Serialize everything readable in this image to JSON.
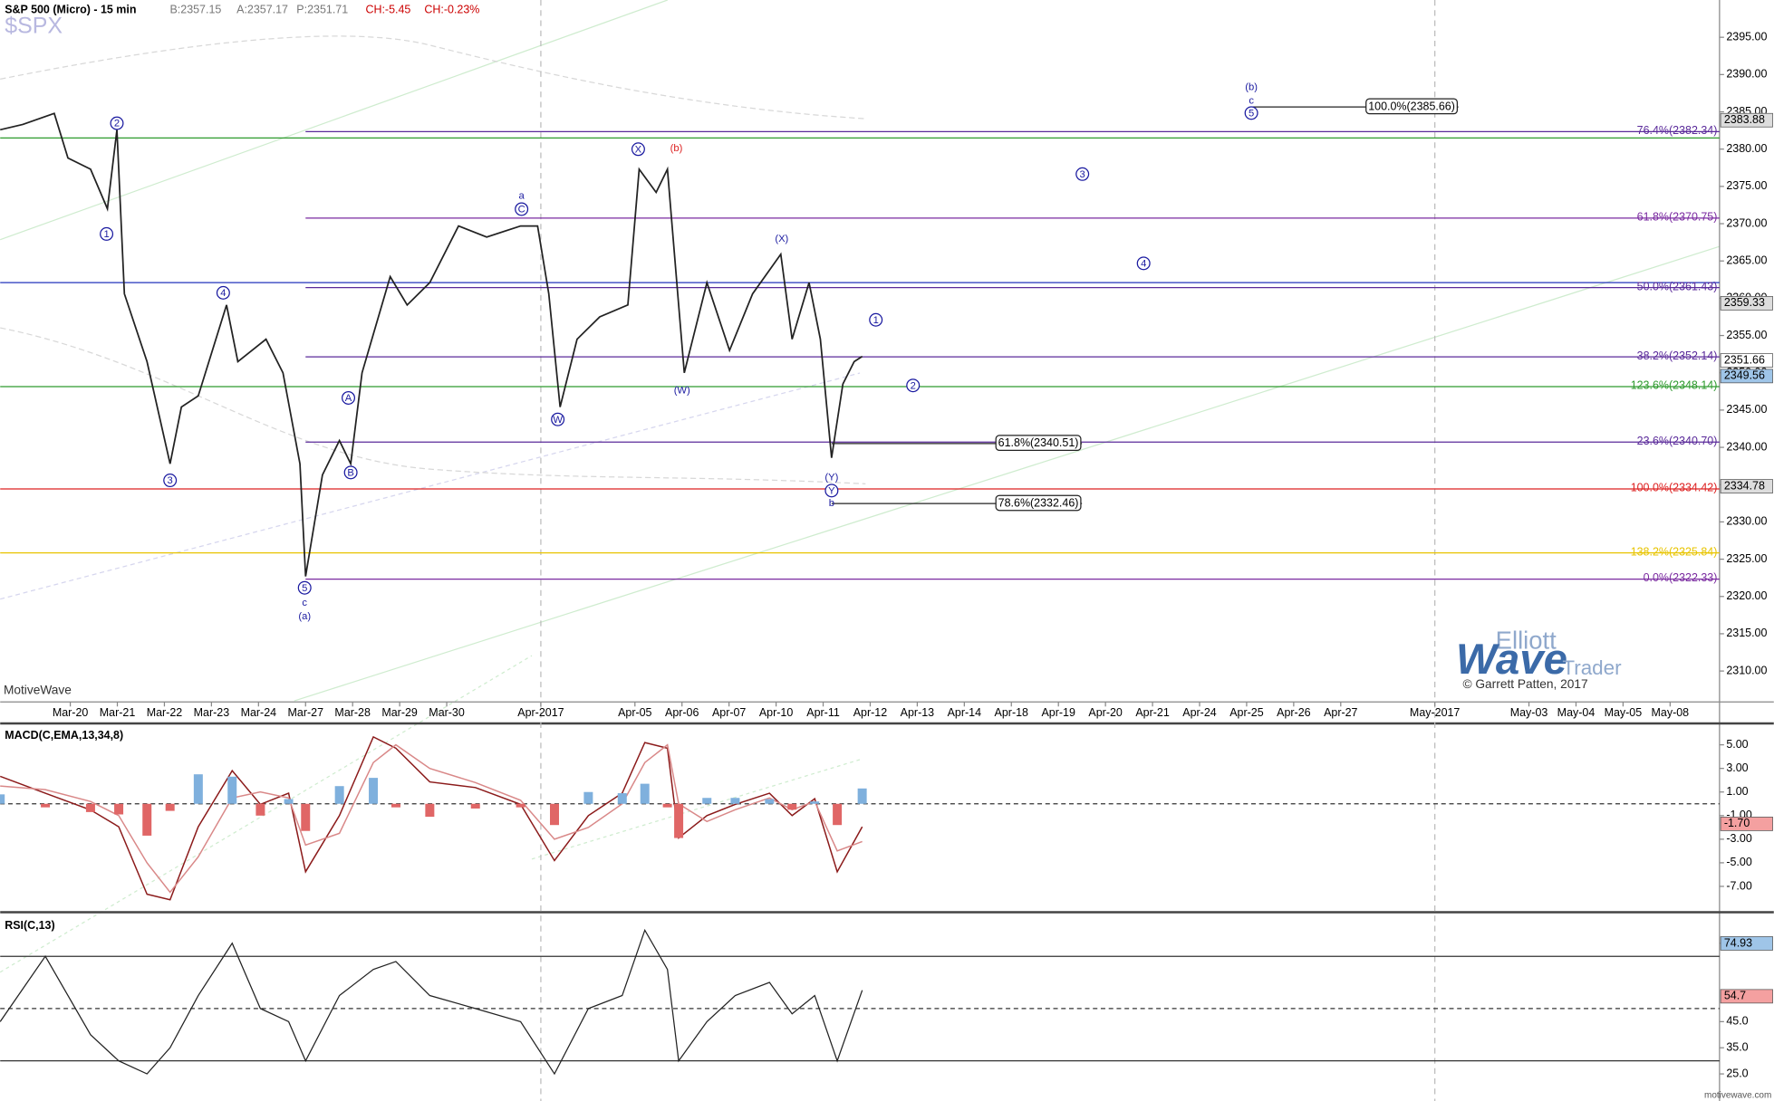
{
  "header": {
    "title": "S&P 500 (Micro) - 15 min",
    "symbol": "$SPX",
    "bid": "B:2357.15",
    "ask": "A:2357.17",
    "price": "P:2351.71",
    "change": "CH:-5.45",
    "change_pct": "CH:-0.23%"
  },
  "branding": {
    "platform": "MotiveWave",
    "word1": "Elliott",
    "word2": "Wave",
    "word3": "Trader",
    "credit": "© Garrett Patten, 2017",
    "site": "motivewave.com"
  },
  "chart_data": [
    {
      "type": "line",
      "title": "S&P 500 (Micro) - 15 min",
      "xlim": [
        -1.49,
        35.05
      ],
      "ylim": [
        2306,
        2400
      ],
      "xticks": [
        {
          "value": 0,
          "label": "Mar-20"
        },
        {
          "value": 1,
          "label": "Mar-21"
        },
        {
          "value": 2,
          "label": "Mar-22"
        },
        {
          "value": 3,
          "label": "Mar-23"
        },
        {
          "value": 4,
          "label": "Mar-24"
        },
        {
          "value": 5,
          "label": "Mar-27"
        },
        {
          "value": 6,
          "label": "Mar-28"
        },
        {
          "value": 7,
          "label": "Mar-29"
        },
        {
          "value": 8,
          "label": "Mar-30"
        },
        {
          "value": 10,
          "label": "Apr-2017"
        },
        {
          "value": 12,
          "label": "Apr-05"
        },
        {
          "value": 13,
          "label": "Apr-06"
        },
        {
          "value": 14,
          "label": "Apr-07"
        },
        {
          "value": 15,
          "label": "Apr-10"
        },
        {
          "value": 16,
          "label": "Apr-11"
        },
        {
          "value": 17,
          "label": "Apr-12"
        },
        {
          "value": 18,
          "label": "Apr-13"
        },
        {
          "value": 19,
          "label": "Apr-14"
        },
        {
          "value": 20,
          "label": "Apr-18"
        },
        {
          "value": 21,
          "label": "Apr-19"
        },
        {
          "value": 22,
          "label": "Apr-20"
        },
        {
          "value": 23,
          "label": "Apr-21"
        },
        {
          "value": 24,
          "label": "Apr-24"
        },
        {
          "value": 25,
          "label": "Apr-25"
        },
        {
          "value": 26,
          "label": "Apr-26"
        },
        {
          "value": 27,
          "label": "Apr-27"
        },
        {
          "value": 29,
          "label": "May-2017"
        },
        {
          "value": 31,
          "label": "May-03"
        },
        {
          "value": 32,
          "label": "May-04"
        },
        {
          "value": 33,
          "label": "May-05"
        },
        {
          "value": 34,
          "label": "May-08"
        }
      ],
      "month_lines": [
        10,
        29
      ],
      "yticks": [
        {
          "value": 2310,
          "label": "2310.00"
        },
        {
          "value": 2315,
          "label": "2315.00"
        },
        {
          "value": 2320,
          "label": "2320.00"
        },
        {
          "value": 2325,
          "label": "2325.00"
        },
        {
          "value": 2330,
          "label": "2330.00"
        },
        {
          "value": 2335,
          "label": "2335.00"
        },
        {
          "value": 2340,
          "label": "2340.00"
        },
        {
          "value": 2345,
          "label": "2345.00"
        },
        {
          "value": 2350,
          "label": "2350.00"
        },
        {
          "value": 2355,
          "label": "2355.00"
        },
        {
          "value": 2360,
          "label": "2360.00"
        },
        {
          "value": 2365,
          "label": "2365.00"
        },
        {
          "value": 2370,
          "label": "2370.00"
        },
        {
          "value": 2375,
          "label": "2375.00"
        },
        {
          "value": 2380,
          "label": "2380.00"
        },
        {
          "value": 2385,
          "label": "2385.00"
        },
        {
          "value": 2390,
          "label": "2390.00"
        },
        {
          "value": 2395,
          "label": "2395.00"
        }
      ],
      "series": [
        {
          "color": "#222222",
          "x": [
            -1.49,
            -1.01,
            -0.34,
            -0.05,
            0.43,
            0.79,
            0.99,
            1.15,
            1.63,
            2.12,
            2.36,
            2.72,
            3.32,
            3.56,
            4.16,
            4.52,
            4.88,
            5.0,
            5.36,
            5.72,
            5.96,
            6.2,
            6.8,
            7.16,
            7.64,
            8.25,
            8.85,
            9.57,
            9.93,
            10.17,
            10.41,
            10.77,
            11.25,
            11.85,
            12.09,
            12.45,
            12.69,
            12.93,
            13.05,
            13.53,
            14.01,
            14.5,
            15.1,
            15.34,
            15.7,
            15.94,
            16.18,
            16.42,
            16.66,
            16.83
          ],
          "values": [
            2382.6,
            2383.3,
            2384.8,
            2378.8,
            2377.3,
            2372,
            2382.6,
            2360.6,
            2351.5,
            2337.8,
            2345.4,
            2346.9,
            2359.1,
            2351.5,
            2354.5,
            2350,
            2337.8,
            2322.7,
            2336.3,
            2340.9,
            2337.8,
            2350,
            2362.9,
            2359.1,
            2362.1,
            2369.7,
            2368.2,
            2369.7,
            2369.7,
            2360.6,
            2345.4,
            2354.5,
            2357.5,
            2359.1,
            2377.3,
            2374.2,
            2377.3,
            2359.1,
            2350,
            2362.1,
            2353,
            2360.6,
            2365.9,
            2354.5,
            2362.1,
            2354.5,
            2338.6,
            2348.5,
            2351.5,
            2352.2
          ]
        }
      ],
      "levels": [
        {
          "value": 2381.5,
          "color": "#2e9a2e",
          "from": null
        },
        {
          "value": 2362.1,
          "color": "#2233bb",
          "from": null
        },
        {
          "value": 2382.34,
          "label": "76.4%(2382.34)",
          "color": "#5a2a9a",
          "from": 5.0
        },
        {
          "value": 2370.75,
          "label": "61.8%(2370.75)",
          "color": "#7a2aa0",
          "from": 5.0
        },
        {
          "value": 2361.43,
          "label": "50.0%(2361.43)",
          "color": "#5a2a9a",
          "from": 5.0
        },
        {
          "value": 2352.14,
          "label": "38.2%(2352.14)",
          "color": "#5a2a9a",
          "from": 5.0
        },
        {
          "value": 2348.14,
          "label": "123.6%(2348.14)",
          "color": "#2e9a2e",
          "from": null
        },
        {
          "value": 2340.7,
          "label": "23.6%(2340.70)",
          "color": "#5a2a9a",
          "from": 5.0
        },
        {
          "value": 2334.42,
          "label": "100.0%(2334.42)",
          "color": "#dd2222",
          "from": null
        },
        {
          "value": 2325.84,
          "label": "138.2%(2325.84)",
          "color": "#e8c400",
          "from": null
        },
        {
          "value": 2322.33,
          "label": "0.0%(2322.33)",
          "color": "#7a2aa0",
          "from": 5.0
        }
      ],
      "boxed_levels": [
        {
          "value": 2385.66,
          "label": "100.0%(2385.66)",
          "from": 25.1,
          "to": 29.5
        },
        {
          "value": 2340.51,
          "label": "61.8%(2340.51)",
          "from": 16.18,
          "to": 21.5
        },
        {
          "value": 2332.46,
          "label": "78.6%(2332.46)",
          "from": 16.18,
          "to": 21.5
        }
      ],
      "price_tags": [
        {
          "value": 2383.88,
          "color": "#dddddd"
        },
        {
          "value": 2359.33,
          "color": "#dddddd"
        },
        {
          "value": 2351.66,
          "color": "#ffffff"
        },
        {
          "value": 2349.56,
          "color": "#9fc5e8"
        },
        {
          "value": 2334.78,
          "color": "#dddddd"
        }
      ],
      "annotations": [
        {
          "x": 0.99,
          "y": 2383.47,
          "text": "2",
          "circled": true,
          "color": "#1a1aa0"
        },
        {
          "x": 0.77,
          "y": 2368.62,
          "text": "1",
          "circled": true,
          "color": "#1a1aa0"
        },
        {
          "x": 3.25,
          "y": 2360.73,
          "text": "4",
          "circled": true,
          "color": "#1a1aa0"
        },
        {
          "x": 2.12,
          "y": 2335.57,
          "text": "3",
          "circled": true,
          "color": "#1a1aa0"
        },
        {
          "x": 4.98,
          "y": 2321.16,
          "text": "5",
          "circled": true,
          "color": "#1a1aa0"
        },
        {
          "x": 4.98,
          "y": 2319.19,
          "text": "c",
          "circled": false,
          "color": "#1a1aa0"
        },
        {
          "x": 4.98,
          "y": 2317.37,
          "text": "(a)",
          "circled": false,
          "color": "#1a1aa0"
        },
        {
          "x": 5.91,
          "y": 2346.63,
          "text": "A",
          "circled": true,
          "color": "#1a1aa0"
        },
        {
          "x": 5.96,
          "y": 2336.63,
          "text": "B",
          "circled": true,
          "color": "#1a1aa0"
        },
        {
          "x": 9.59,
          "y": 2373.77,
          "text": "a",
          "circled": false,
          "color": "#1a1aa0"
        },
        {
          "x": 9.59,
          "y": 2371.95,
          "text": "C",
          "circled": true,
          "color": "#1a1aa0"
        },
        {
          "x": 10.36,
          "y": 2343.75,
          "text": "W",
          "circled": true,
          "color": "#1a1aa0"
        },
        {
          "x": 12.07,
          "y": 2379.99,
          "text": "X",
          "circled": true,
          "color": "#1a1aa0"
        },
        {
          "x": 12.88,
          "y": 2380.14,
          "text": "(b)",
          "circled": false,
          "color": "#dd2222"
        },
        {
          "x": 13.0,
          "y": 2347.7,
          "text": "(W)",
          "circled": false,
          "color": "#1a1aa0"
        },
        {
          "x": 15.12,
          "y": 2368.01,
          "text": "(X)",
          "circled": false,
          "color": "#1a1aa0"
        },
        {
          "x": 16.18,
          "y": 2336.02,
          "text": "(Y)",
          "circled": false,
          "color": "#1a1aa0"
        },
        {
          "x": 16.18,
          "y": 2334.2,
          "text": "Y",
          "circled": true,
          "color": "#1a1aa0"
        },
        {
          "x": 16.18,
          "y": 2332.53,
          "text": "b",
          "circled": false,
          "color": "#1a1aa0"
        },
        {
          "x": 17.12,
          "y": 2357.1,
          "text": "1",
          "circled": true,
          "color": "#1a1aa0"
        },
        {
          "x": 17.91,
          "y": 2348.3,
          "text": "2",
          "circled": true,
          "color": "#1a1aa0"
        },
        {
          "x": 21.51,
          "y": 2376.65,
          "text": "3",
          "circled": true,
          "color": "#1a1aa0"
        },
        {
          "x": 22.81,
          "y": 2364.68,
          "text": "4",
          "circled": true,
          "color": "#1a1aa0"
        },
        {
          "x": 25.1,
          "y": 2388.33,
          "text": "(b)",
          "circled": false,
          "color": "#1a1aa0"
        },
        {
          "x": 25.1,
          "y": 2386.51,
          "text": "c",
          "circled": false,
          "color": "#1a1aa0"
        },
        {
          "x": 25.1,
          "y": 2384.84,
          "text": "5",
          "circled": true,
          "color": "#1a1aa0"
        }
      ]
    },
    {
      "type": "macd",
      "title": "MACD(C,EMA,13,34,8)",
      "ylim": [
        -9.0,
        6.62
      ],
      "yticks": [
        {
          "value": 5,
          "label": "5.00"
        },
        {
          "value": 3,
          "label": "3.00"
        },
        {
          "value": 1,
          "label": "1.00"
        },
        {
          "value": -1,
          "label": "-1.00"
        },
        {
          "value": -3,
          "label": "-3.00"
        },
        {
          "value": -5,
          "label": "-5.00"
        },
        {
          "value": -7,
          "label": "-7.00"
        }
      ],
      "x": [
        -1.49,
        -0.53,
        0.43,
        1.03,
        1.63,
        2.12,
        2.72,
        3.44,
        4.04,
        4.64,
        5.0,
        5.72,
        6.44,
        6.92,
        7.64,
        8.61,
        9.57,
        10.29,
        11.01,
        11.73,
        12.21,
        12.69,
        12.93,
        13.53,
        14.13,
        14.86,
        15.34,
        15.82,
        16.3,
        16.83
      ],
      "series": [
        {
          "color": "#8b1a1a",
          "values": [
            2.33,
            0.9,
            -0.52,
            -1.95,
            -7.67,
            -8.14,
            -1.95,
            2.81,
            -0.05,
            0.9,
            -5.76,
            -1.0,
            5.67,
            4.71,
            1.86,
            1.38,
            -0.05,
            -4.81,
            -1.0,
            0.9,
            5.19,
            4.71,
            -2.9,
            -1.0,
            -0.05,
            0.9,
            -1.0,
            0.43,
            -5.76,
            -1.95
          ]
        },
        {
          "color": "#d98888",
          "values": [
            1.5,
            1.2,
            0.2,
            -1.0,
            -5.0,
            -7.5,
            -4.5,
            0.5,
            1.0,
            0.5,
            -3.5,
            -2.5,
            3.5,
            5.0,
            3.0,
            1.8,
            0.3,
            -3.0,
            -2.0,
            0.0,
            3.5,
            5.0,
            0.0,
            -1.5,
            -0.5,
            0.5,
            -0.5,
            0.2,
            -4.0,
            -3.2
          ]
        },
        {
          "type": "histogram",
          "color": "#7fb0dd",
          "negative_color": "#e06666",
          "values": [
            0.8,
            -0.3,
            -0.7,
            -0.9,
            -2.7,
            -0.6,
            2.5,
            2.3,
            -1.0,
            0.4,
            -2.3,
            1.5,
            2.2,
            -0.3,
            -1.1,
            -0.4,
            -0.3,
            -1.8,
            1.0,
            0.9,
            1.7,
            -0.3,
            -2.9,
            0.5,
            0.5,
            0.4,
            -0.5,
            0.2,
            -1.8,
            1.3
          ]
        }
      ],
      "zero_line": 0,
      "tags": [
        {
          "value": -1.7,
          "label": "-1.70",
          "color": "#f4a0a0"
        }
      ]
    },
    {
      "type": "rsi",
      "title": "RSI(C,13)",
      "ylim": [
        15.5,
        86
      ],
      "yticks": [
        {
          "value": 25,
          "label": "25.0"
        },
        {
          "value": 35,
          "label": "35.0"
        },
        {
          "value": 45,
          "label": "45.0"
        },
        {
          "value": 75,
          "label": "75.0"
        }
      ],
      "x": [
        -1.49,
        -0.53,
        0.43,
        1.03,
        1.63,
        2.12,
        2.72,
        3.44,
        4.04,
        4.64,
        5.0,
        5.72,
        6.44,
        6.92,
        7.64,
        8.61,
        9.57,
        10.29,
        11.01,
        11.73,
        12.21,
        12.69,
        12.93,
        13.53,
        14.13,
        14.86,
        15.34,
        15.82,
        16.3,
        16.83
      ],
      "series": [
        {
          "color": "#222222",
          "values": [
            45,
            70,
            40,
            30,
            25,
            35,
            55,
            75,
            50,
            45,
            30,
            55,
            65,
            68,
            55,
            50,
            45,
            25,
            50,
            55,
            80,
            65,
            30,
            45,
            55,
            60,
            48,
            55,
            30,
            57
          ]
        }
      ],
      "levels": [
        {
          "value": 70,
          "dashed": false
        },
        {
          "value": 30,
          "dashed": false
        },
        {
          "value": 50,
          "dashed": true
        }
      ],
      "tags": [
        {
          "value": 74.93,
          "color": "#9fc5e8"
        },
        {
          "value": 54.7,
          "color": "#f4a0a0"
        }
      ]
    }
  ]
}
